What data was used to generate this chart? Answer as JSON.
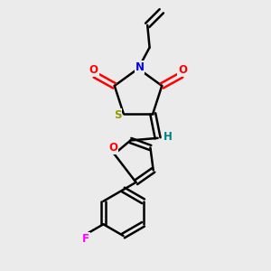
{
  "background_color": "#ebebeb",
  "bond_color": "#000000",
  "atom_colors": {
    "N": "#0000ff",
    "O": "#ff0000",
    "S": "#999900",
    "F": "#ff00ff",
    "H": "#008080",
    "C": "#000000"
  },
  "figsize": [
    3.0,
    3.0
  ],
  "dpi": 100,
  "xlim": [
    0,
    10
  ],
  "ylim": [
    0,
    10
  ]
}
